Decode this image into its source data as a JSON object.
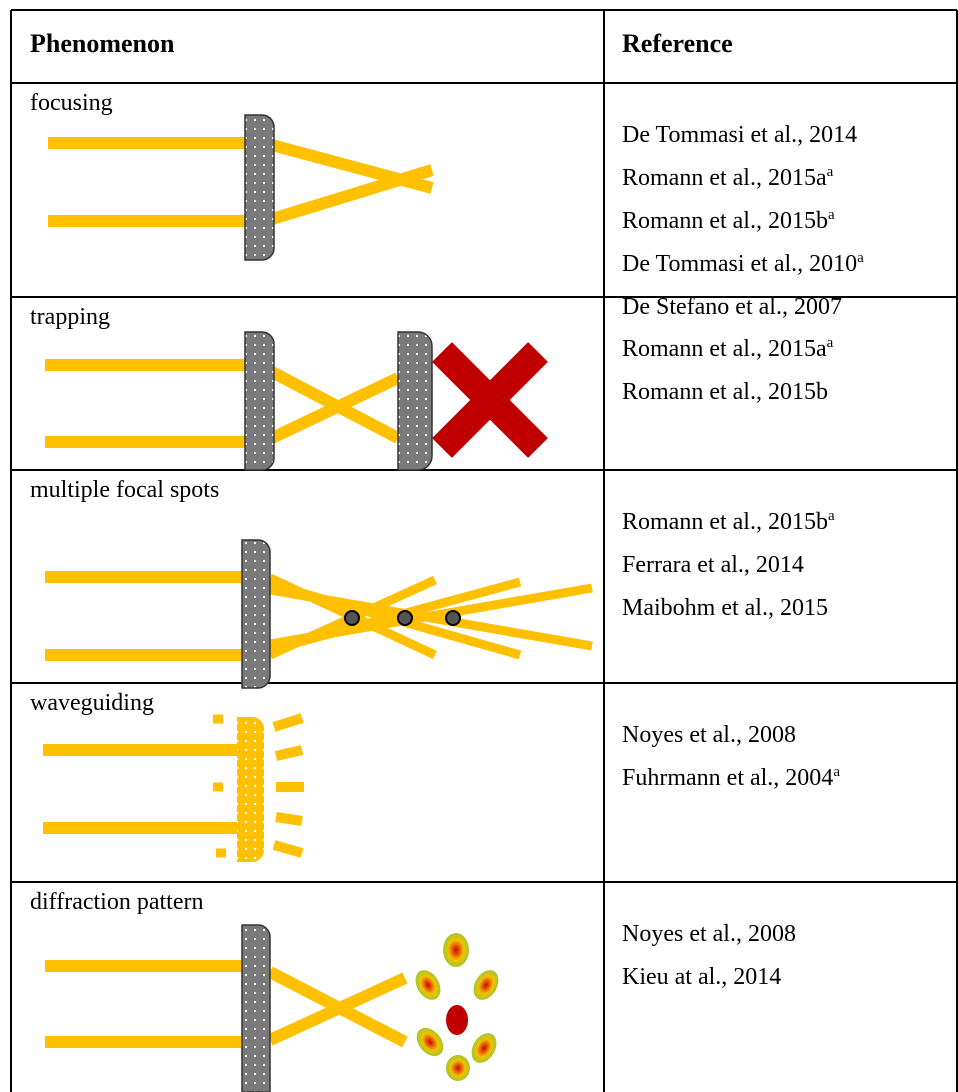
{
  "header": {
    "phenomenon": "Phenomenon",
    "reference": "Reference"
  },
  "rows": [
    {
      "phenomenon": "focusing",
      "references": [
        {
          "text": "De Tommasi et al., 2014"
        },
        {
          "text": "Romann et al., 2015a",
          "sup": "a"
        },
        {
          "text": "Romann et al., 2015b",
          "sup": "a"
        },
        {
          "text": "De Tommasi et al., 2010",
          "sup": "a"
        },
        {
          "text": "De Stefano et al., 2007"
        }
      ]
    },
    {
      "phenomenon": "trapping",
      "references": [
        {
          "text": "Romann et al., 2015a",
          "sup": "a"
        },
        {
          "text": "Romann et al., 2015b"
        }
      ]
    },
    {
      "phenomenon": "multiple focal spots",
      "references": [
        {
          "text": "Romann et al., 2015b",
          "sup": "a"
        },
        {
          "text": "Ferrara et al., 2014"
        },
        {
          "text": "Maibohm et al., 2015"
        }
      ]
    },
    {
      "phenomenon": "waveguiding",
      "references": [
        {
          "text": "Noyes et al., 2008"
        },
        {
          "text": "Fuhrmann et al., 2004",
          "sup": "a"
        }
      ]
    },
    {
      "phenomenon": "diffraction pattern",
      "references": [
        {
          "text": "Noyes et al., 2008"
        },
        {
          "text": "Kieu at al., 2014"
        }
      ]
    }
  ]
}
